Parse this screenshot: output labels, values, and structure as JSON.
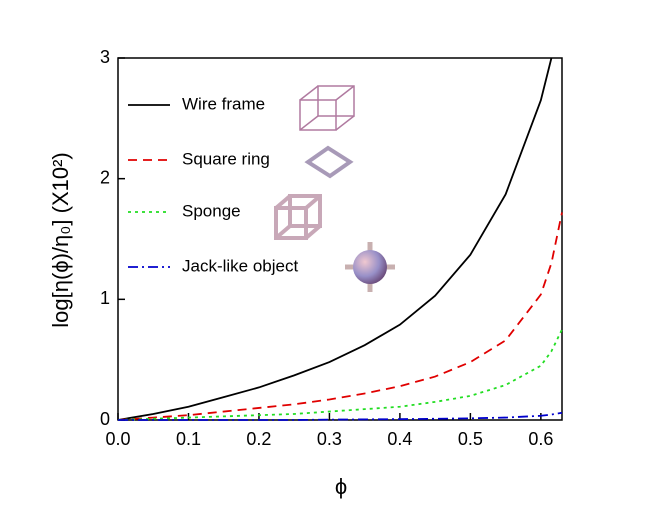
{
  "chart_data": {
    "type": "line",
    "xlabel": "ϕ",
    "ylabel": "log[η(ϕ)/η₀] (X10²)",
    "x": [
      0,
      0.05,
      0.1,
      0.15,
      0.2,
      0.25,
      0.3,
      0.35,
      0.4,
      0.45,
      0.5,
      0.55,
      0.6,
      0.615,
      0.63
    ],
    "series": [
      {
        "name": "Wire frame",
        "color": "#000000",
        "dash": "solid",
        "values": [
          0,
          0.05,
          0.11,
          0.19,
          0.27,
          0.37,
          0.48,
          0.62,
          0.79,
          1.03,
          1.37,
          1.87,
          2.65,
          3.0,
          null
        ]
      },
      {
        "name": "Square ring",
        "color": "#e00000",
        "dash": "dashed",
        "values": [
          0,
          0.02,
          0.04,
          0.07,
          0.1,
          0.13,
          0.17,
          0.22,
          0.28,
          0.36,
          0.48,
          0.66,
          1.04,
          1.3,
          1.72
        ]
      },
      {
        "name": "Sponge",
        "color": "#22dd22",
        "dash": "dotted",
        "values": [
          0,
          0.01,
          0.02,
          0.03,
          0.04,
          0.05,
          0.07,
          0.09,
          0.11,
          0.15,
          0.2,
          0.29,
          0.45,
          0.57,
          0.75
        ]
      },
      {
        "name": "Jack-like object",
        "color": "#0000cc",
        "dash": "dashdot",
        "values": [
          0,
          0,
          0,
          0,
          0,
          0,
          0.003,
          0.005,
          0.007,
          0.01,
          0.014,
          0.02,
          0.035,
          0.045,
          0.06
        ]
      }
    ],
    "xlim": [
      0,
      0.63
    ],
    "xticks": [
      {
        "value": 0,
        "label": "0.0"
      },
      0.1,
      0.2,
      0.3,
      0.4,
      0.5,
      0.6
    ],
    "ylim": [
      0,
      3
    ],
    "yticks": [
      0,
      1,
      2,
      3
    ],
    "legend": "upper-left"
  }
}
